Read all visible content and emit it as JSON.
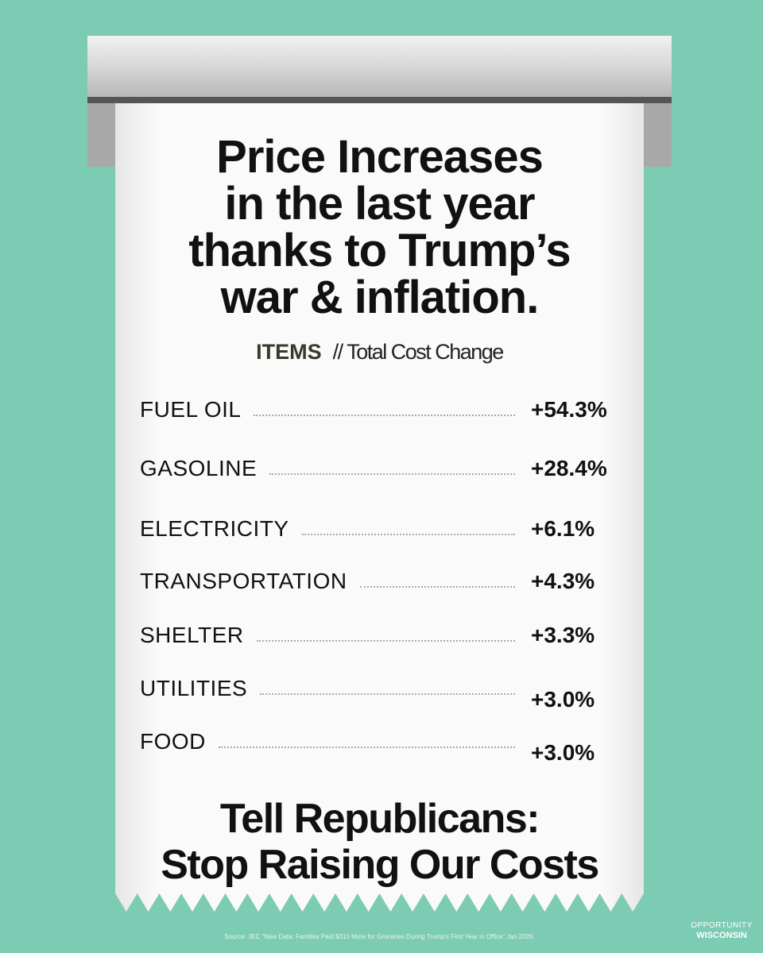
{
  "title": [
    "Price Increases",
    "in the last year",
    "thanks to Trump’s",
    "war & inflation."
  ],
  "header": {
    "items": "ITEMS",
    "subtitle": "// Total Cost Change"
  },
  "items": [
    {
      "name": "FUEL OIL",
      "value": "+54.3%"
    },
    {
      "name": "GASOLINE",
      "value": "+28.4%"
    },
    {
      "name": "ELECTRICITY",
      "value": "+6.1%"
    },
    {
      "name": "TRANSPORTATION",
      "value": "+4.3%"
    },
    {
      "name": "SHELTER",
      "value": "+3.3%"
    },
    {
      "name": "UTILITIES",
      "value": "+3.0%"
    },
    {
      "name": "FOOD",
      "value": "+3.0%"
    }
  ],
  "footer": [
    "Tell Republicans:",
    "Stop Raising Our Costs"
  ],
  "source": "Source: JEC \"New Data: Families Paid $310 More for Groceries During Trump's First Year in Office\" Jan 2026.",
  "logo": [
    "OPPORTUNITY",
    "WISCONSIN"
  ]
}
